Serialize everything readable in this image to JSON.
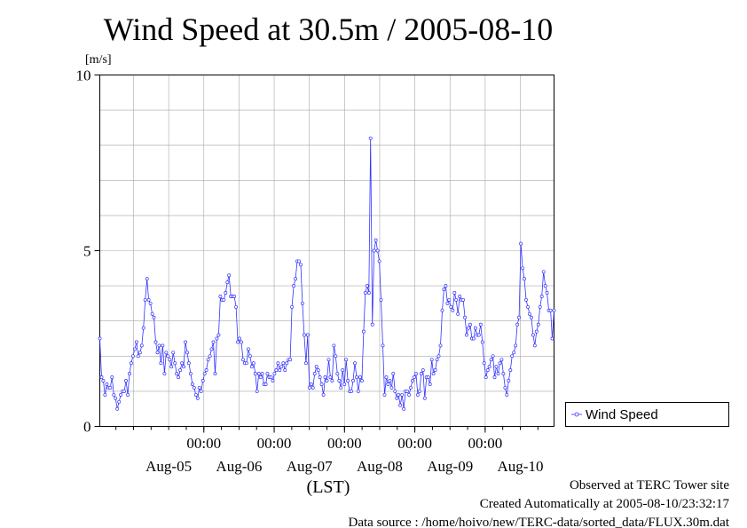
{
  "chart_data": {
    "type": "line",
    "title": "Wind Speed at 30.5m / 2005-08-10",
    "ylabel": "[m/s]",
    "xlabel": "(LST)",
    "ylim": [
      0,
      10
    ],
    "yticks": [
      "0",
      "5",
      "10"
    ],
    "x_time_ticks": [
      "00:00",
      "00:00",
      "00:00",
      "00:00",
      "00:00"
    ],
    "x_date_labels": [
      "Aug-05",
      "Aug-06",
      "Aug-07",
      "Aug-08",
      "Aug-09",
      "Aug-10"
    ],
    "x_start": "2005-08-04T12:30",
    "x_end": "2005-08-10T23:30",
    "grid": true,
    "legend_position": "right",
    "color": "#3333ff",
    "series": [
      {
        "name": "Wind Speed",
        "values": [
          2.5,
          1.4,
          1.3,
          0.9,
          1.2,
          1.1,
          1.1,
          1.4,
          0.9,
          0.8,
          0.5,
          0.7,
          0.9,
          1.0,
          1.0,
          1.3,
          0.9,
          1.5,
          1.8,
          2.0,
          2.2,
          2.4,
          2.0,
          2.1,
          2.3,
          2.8,
          3.6,
          4.2,
          3.6,
          3.5,
          3.2,
          3.1,
          2.4,
          2.1,
          2.3,
          1.8,
          2.3,
          1.5,
          2.1,
          2.0,
          1.9,
          1.7,
          2.1,
          1.8,
          1.5,
          1.4,
          1.6,
          1.8,
          1.7,
          2.4,
          2.1,
          1.8,
          1.5,
          1.2,
          1.1,
          0.9,
          0.8,
          1.1,
          1.0,
          1.3,
          1.5,
          1.6,
          1.9,
          2.0,
          2.2,
          2.4,
          1.5,
          2.5,
          2.6,
          3.7,
          3.6,
          3.6,
          3.8,
          4.1,
          4.3,
          3.7,
          3.7,
          3.7,
          3.4,
          2.4,
          2.5,
          2.4,
          1.9,
          1.8,
          1.8,
          2.2,
          2.0,
          1.7,
          1.8,
          1.5,
          1.0,
          1.5,
          1.4,
          1.5,
          1.2,
          1.2,
          1.5,
          1.4,
          1.4,
          1.3,
          1.5,
          1.6,
          1.8,
          1.6,
          1.7,
          1.8,
          1.6,
          1.8,
          1.9,
          1.9,
          3.4,
          4.0,
          4.2,
          4.7,
          4.7,
          4.6,
          3.5,
          2.6,
          1.8,
          2.6,
          1.1,
          1.2,
          1.1,
          1.5,
          1.7,
          1.6,
          1.4,
          1.2,
          0.9,
          1.4,
          1.3,
          1.9,
          1.4,
          1.3,
          2.3,
          2.0,
          1.5,
          1.3,
          1.1,
          1.6,
          1.2,
          1.9,
          1.3,
          1.0,
          1.0,
          1.3,
          1.8,
          1.4,
          1.0,
          1.4,
          1.3,
          2.7,
          3.8,
          4.0,
          3.8,
          8.2,
          2.9,
          5.0,
          5.3,
          5.0,
          4.7,
          3.6,
          2.3,
          0.9,
          1.4,
          1.2,
          1.3,
          1.1,
          1.5,
          1.0,
          0.8,
          0.9,
          0.6,
          0.9,
          0.5,
          1.0,
          1.0,
          0.9,
          1.1,
          1.3,
          1.4,
          1.5,
          0.9,
          1.0,
          1.5,
          1.6,
          0.8,
          1.4,
          1.4,
          1.2,
          1.9,
          1.5,
          1.6,
          1.9,
          2.0,
          2.3,
          3.3,
          3.9,
          4.0,
          3.5,
          3.6,
          3.4,
          3.3,
          3.8,
          3.6,
          3.2,
          3.7,
          3.6,
          3.6,
          3.1,
          2.6,
          2.8,
          2.9,
          2.5,
          2.5,
          2.8,
          2.6,
          2.6,
          2.9,
          2.4,
          1.8,
          1.4,
          1.6,
          1.7,
          1.9,
          2.0,
          1.4,
          1.7,
          1.5,
          1.8,
          1.9,
          1.5,
          1.1,
          0.9,
          1.3,
          1.6,
          2.0,
          2.1,
          2.3,
          2.9,
          3.1,
          5.2,
          4.5,
          4.2,
          3.6,
          3.4,
          3.2,
          3.1,
          2.6,
          2.3,
          2.7,
          2.9,
          3.4,
          3.7,
          4.4,
          4.0,
          3.8,
          3.3,
          3.3,
          2.5,
          3.3
        ]
      }
    ]
  },
  "footer": {
    "observed": "Observed at TERC Tower site",
    "created": "Created Automatically at 2005-08-10/23:32:17",
    "source": "Data source : /home/hoivo/new/TERC-data/sorted_data/FLUX.30m.dat"
  }
}
